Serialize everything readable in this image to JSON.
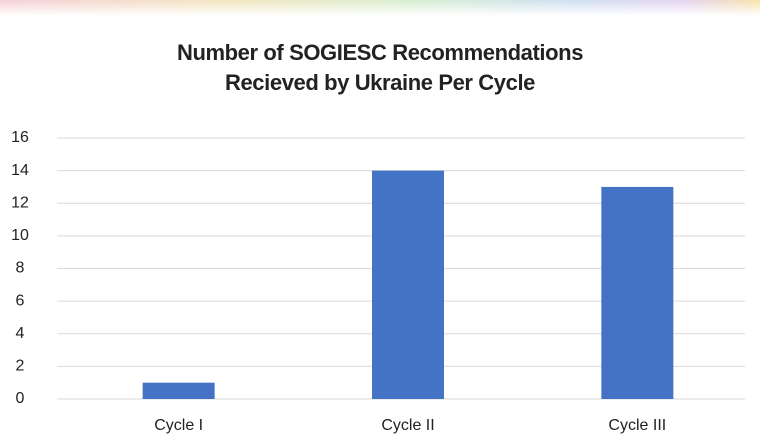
{
  "chart_data": {
    "type": "bar",
    "title": "Number of SOGIESC Recommendations Recieved by Ukraine Per Cycle",
    "categories": [
      "Cycle I",
      "Cycle II",
      "Cycle III"
    ],
    "values": [
      1,
      14,
      13
    ],
    "color": "#4472c4",
    "ylim": [
      0,
      16
    ],
    "yticks": [
      0,
      2,
      4,
      6,
      8,
      10,
      12,
      14,
      16
    ],
    "grid": true
  }
}
